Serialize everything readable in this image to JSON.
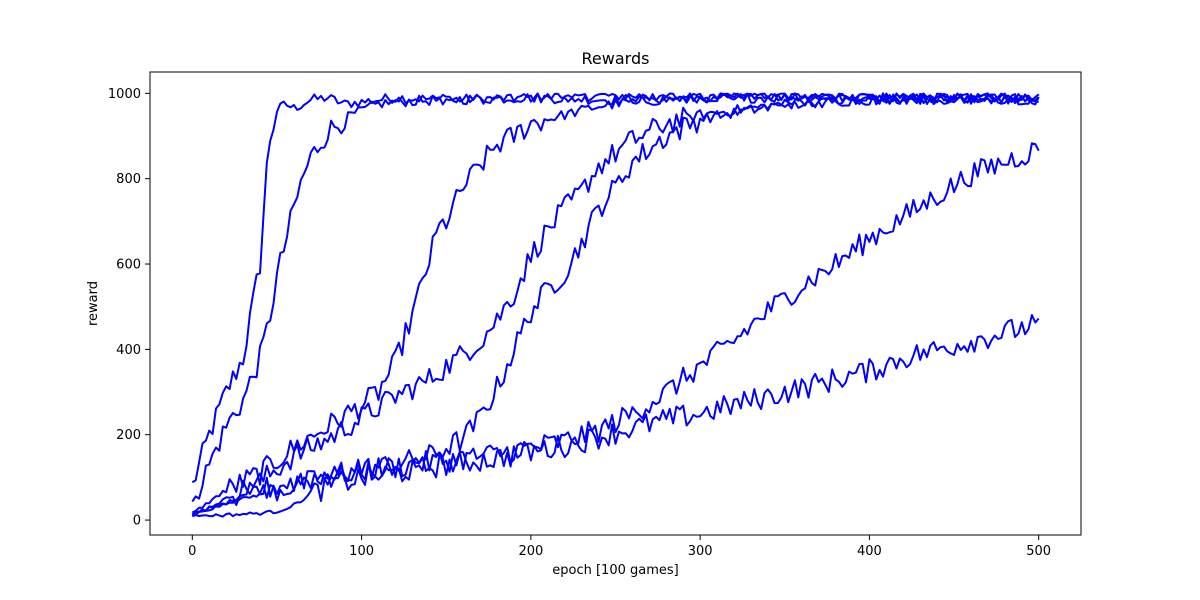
{
  "chart_data": {
    "type": "line",
    "title": "Rewards",
    "xlabel": "epoch [100 games]",
    "ylabel": "reward",
    "xlim": [
      -25,
      525
    ],
    "ylim": [
      -35,
      1050
    ],
    "xticks": [
      0,
      100,
      200,
      300,
      400,
      500
    ],
    "yticks": [
      0,
      200,
      400,
      600,
      800,
      1000
    ],
    "grid": false,
    "line_color": "#0000ff",
    "series": [
      {
        "x": [
          0,
          10,
          20,
          30,
          40,
          45,
          50,
          55,
          60,
          70,
          80,
          90,
          100,
          120,
          150,
          200,
          250,
          300,
          350,
          400,
          450,
          500
        ],
        "values": [
          80,
          200,
          300,
          380,
          600,
          880,
          960,
          975,
          965,
          985,
          990,
          975,
          980,
          990,
          985,
          990,
          995,
          990,
          995,
          985,
          990,
          995
        ]
      },
      {
        "x": [
          0,
          10,
          20,
          30,
          40,
          45,
          50,
          55,
          60,
          65,
          70,
          75,
          80,
          90,
          100,
          110,
          120,
          150,
          200,
          250,
          300,
          350,
          400,
          450,
          500
        ],
        "values": [
          40,
          130,
          220,
          280,
          380,
          460,
          570,
          650,
          730,
          800,
          850,
          880,
          910,
          940,
          960,
          975,
          980,
          985,
          990,
          985,
          990,
          995,
          990,
          985,
          990
        ]
      },
      {
        "x": [
          0,
          20,
          40,
          60,
          80,
          100,
          110,
          120,
          130,
          140,
          145,
          150,
          160,
          170,
          180,
          190,
          200,
          220,
          240,
          260,
          280,
          300,
          350,
          400,
          450,
          500
        ],
        "values": [
          15,
          70,
          110,
          170,
          220,
          270,
          300,
          370,
          480,
          610,
          680,
          700,
          780,
          830,
          880,
          900,
          930,
          950,
          970,
          980,
          985,
          990,
          990,
          995,
          990,
          985
        ]
      },
      {
        "x": [
          0,
          20,
          40,
          60,
          80,
          100,
          120,
          140,
          160,
          170,
          180,
          190,
          200,
          210,
          220,
          230,
          240,
          260,
          280,
          300,
          350,
          400,
          450,
          500
        ],
        "values": [
          10,
          50,
          90,
          150,
          190,
          240,
          290,
          330,
          390,
          420,
          470,
          530,
          620,
          680,
          730,
          770,
          830,
          890,
          930,
          950,
          975,
          985,
          990,
          990
        ]
      },
      {
        "x": [
          0,
          20,
          40,
          60,
          80,
          100,
          120,
          140,
          160,
          170,
          180,
          190,
          200,
          210,
          220,
          230,
          240,
          250,
          260,
          280,
          300,
          350,
          400,
          450,
          500
        ],
        "values": [
          15,
          40,
          60,
          80,
          100,
          120,
          130,
          150,
          190,
          240,
          310,
          400,
          490,
          540,
          580,
          650,
          730,
          780,
          840,
          900,
          940,
          975,
          985,
          990,
          985
        ]
      },
      {
        "x": [
          0,
          20,
          40,
          60,
          80,
          100,
          120,
          140,
          160,
          180,
          200,
          220,
          240,
          260,
          280,
          300,
          320,
          340,
          360,
          380,
          400,
          420,
          440,
          460,
          480,
          500
        ],
        "values": [
          10,
          40,
          70,
          90,
          105,
          115,
          125,
          135,
          145,
          155,
          170,
          185,
          210,
          250,
          300,
          360,
          420,
          490,
          550,
          600,
          660,
          710,
          760,
          810,
          840,
          870
        ]
      },
      {
        "x": [
          0,
          20,
          30,
          40,
          50,
          60,
          70,
          80,
          100,
          120,
          140,
          160,
          180,
          200,
          220,
          240,
          260,
          280,
          300,
          320,
          340,
          360,
          380,
          400,
          420,
          440,
          460,
          480,
          500
        ],
        "values": [
          10,
          12,
          14,
          16,
          20,
          35,
          60,
          80,
          100,
          110,
          125,
          135,
          145,
          160,
          175,
          195,
          215,
          235,
          250,
          270,
          290,
          310,
          330,
          350,
          380,
          400,
          420,
          440,
          460
        ]
      }
    ]
  }
}
